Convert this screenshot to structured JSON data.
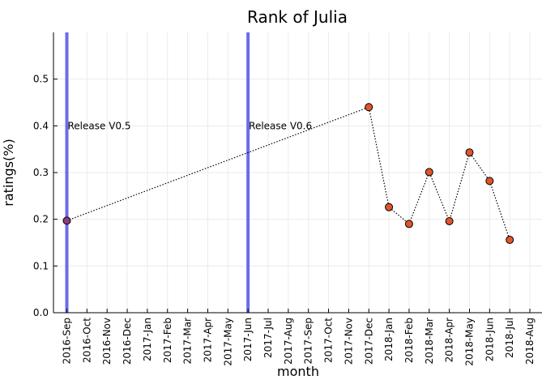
{
  "chart_data": {
    "type": "line",
    "title": "Rank of Julia",
    "xlabel": "month",
    "ylabel": "ratings(%)",
    "ylim": [
      0,
      0.6
    ],
    "yticks": [
      0.0,
      0.1,
      0.2,
      0.3,
      0.4,
      0.5
    ],
    "ytick_labels": [
      "0.0",
      "0.1",
      "0.2",
      "0.3",
      "0.4",
      "0.5"
    ],
    "categories": [
      "2016-Sep",
      "2016-Oct",
      "2016-Nov",
      "2016-Dec",
      "2017-Jan",
      "2017-Feb",
      "2017-Mar",
      "2017-Apr",
      "2017-May",
      "2017-Jun",
      "2017-Jul",
      "2017-Aug",
      "2017-Sep",
      "2017-Oct",
      "2017-Nov",
      "2017-Dec",
      "2018-Jan",
      "2018-Feb",
      "2018-Mar",
      "2018-Apr",
      "2018-May",
      "2018-Jun",
      "2018-Jul",
      "2018-Aug"
    ],
    "grid": true,
    "series": [
      {
        "points": [
          {
            "x": "2016-Sep",
            "y": 0.197
          },
          {
            "x": "2017-Dec",
            "y": 0.44
          },
          {
            "x": "2018-Jan",
            "y": 0.226
          },
          {
            "x": "2018-Feb",
            "y": 0.19
          },
          {
            "x": "2018-Mar",
            "y": 0.301
          },
          {
            "x": "2018-Apr",
            "y": 0.196
          },
          {
            "x": "2018-May",
            "y": 0.343
          },
          {
            "x": "2018-Jun",
            "y": 0.282
          },
          {
            "x": "2018-Jul",
            "y": 0.156
          }
        ],
        "marker_color": "#e2552a",
        "first_marker_color": "#8a3f7c",
        "line_style": "dotted"
      }
    ],
    "annotations": [
      {
        "x": "2016-Sep",
        "y": 0.4,
        "text": "Release V0.5"
      },
      {
        "x": "2017-Jun",
        "y": 0.4,
        "text": "Release V0.6"
      }
    ],
    "vlines": [
      "2016-Sep",
      "2017-Jun"
    ],
    "vline_color": "#6b6bea"
  }
}
